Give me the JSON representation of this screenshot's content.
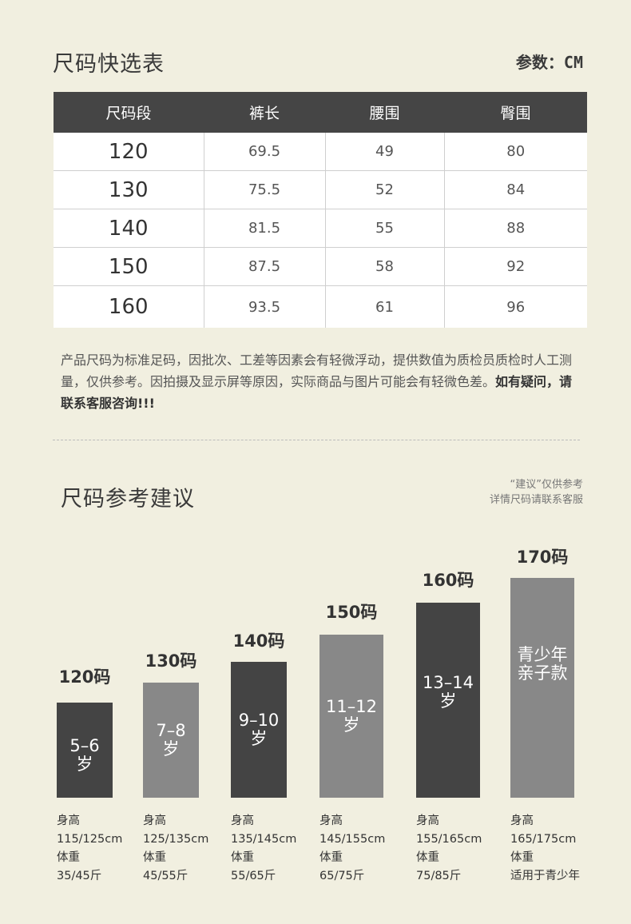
{
  "quick_table": {
    "title": "尺码快选表",
    "unit_label": "参数：",
    "unit_value": "CM",
    "headers": [
      "尺码段",
      "裤长",
      "腰围",
      "臀围"
    ],
    "rows": [
      [
        "120",
        "69.5",
        "49",
        "80"
      ],
      [
        "130",
        "75.5",
        "52",
        "84"
      ],
      [
        "140",
        "81.5",
        "55",
        "88"
      ],
      [
        "150",
        "87.5",
        "58",
        "92"
      ],
      [
        "160",
        "93.5",
        "61",
        "96"
      ]
    ]
  },
  "note": {
    "text": "产品尺码为标准足码，因批次、工差等因素会有轻微浮动，提供数值为质检员质检时人工测量，仅供参考。因拍摄及显示屏等原因，实际商品与图片可能会有轻微色差。",
    "emphasis": "如有疑问，请联系客服咨询!!!"
  },
  "recommend": {
    "title": "尺码参考建议",
    "tip_line1": "“建议”仅供参考",
    "tip_line2": "详情尺码请联系客服",
    "bars": [
      {
        "size": "120码",
        "age_line1": "5–6",
        "age_line2": "岁",
        "height_label": "身高",
        "height": "115/125cm",
        "weight_label": "体重",
        "weight": "35/45斤"
      },
      {
        "size": "130码",
        "age_line1": "7–8",
        "age_line2": "岁",
        "height_label": "身高",
        "height": "125/135cm",
        "weight_label": "体重",
        "weight": "45/55斤"
      },
      {
        "size": "140码",
        "age_line1": "9–10",
        "age_line2": "岁",
        "height_label": "身高",
        "height": "135/145cm",
        "weight_label": "体重",
        "weight": "55/65斤"
      },
      {
        "size": "150码",
        "age_line1": "11–12",
        "age_line2": "岁",
        "height_label": "身高",
        "height": "145/155cm",
        "weight_label": "体重",
        "weight": "65/75斤"
      },
      {
        "size": "160码",
        "age_line1": "13–14",
        "age_line2": "岁",
        "height_label": "身高",
        "height": "155/165cm",
        "weight_label": "体重",
        "weight": "75/85斤"
      },
      {
        "size": "170码",
        "age_line1": "青少年",
        "age_line2": "亲子款",
        "height_label": "身高",
        "height": "165/175cm",
        "weight_label": "体重",
        "weight": "适用于青少年"
      }
    ]
  },
  "colors": {
    "background": "#f1efe0",
    "header": "#454545",
    "bar_dark": "#444444",
    "bar_grey": "#888888"
  }
}
